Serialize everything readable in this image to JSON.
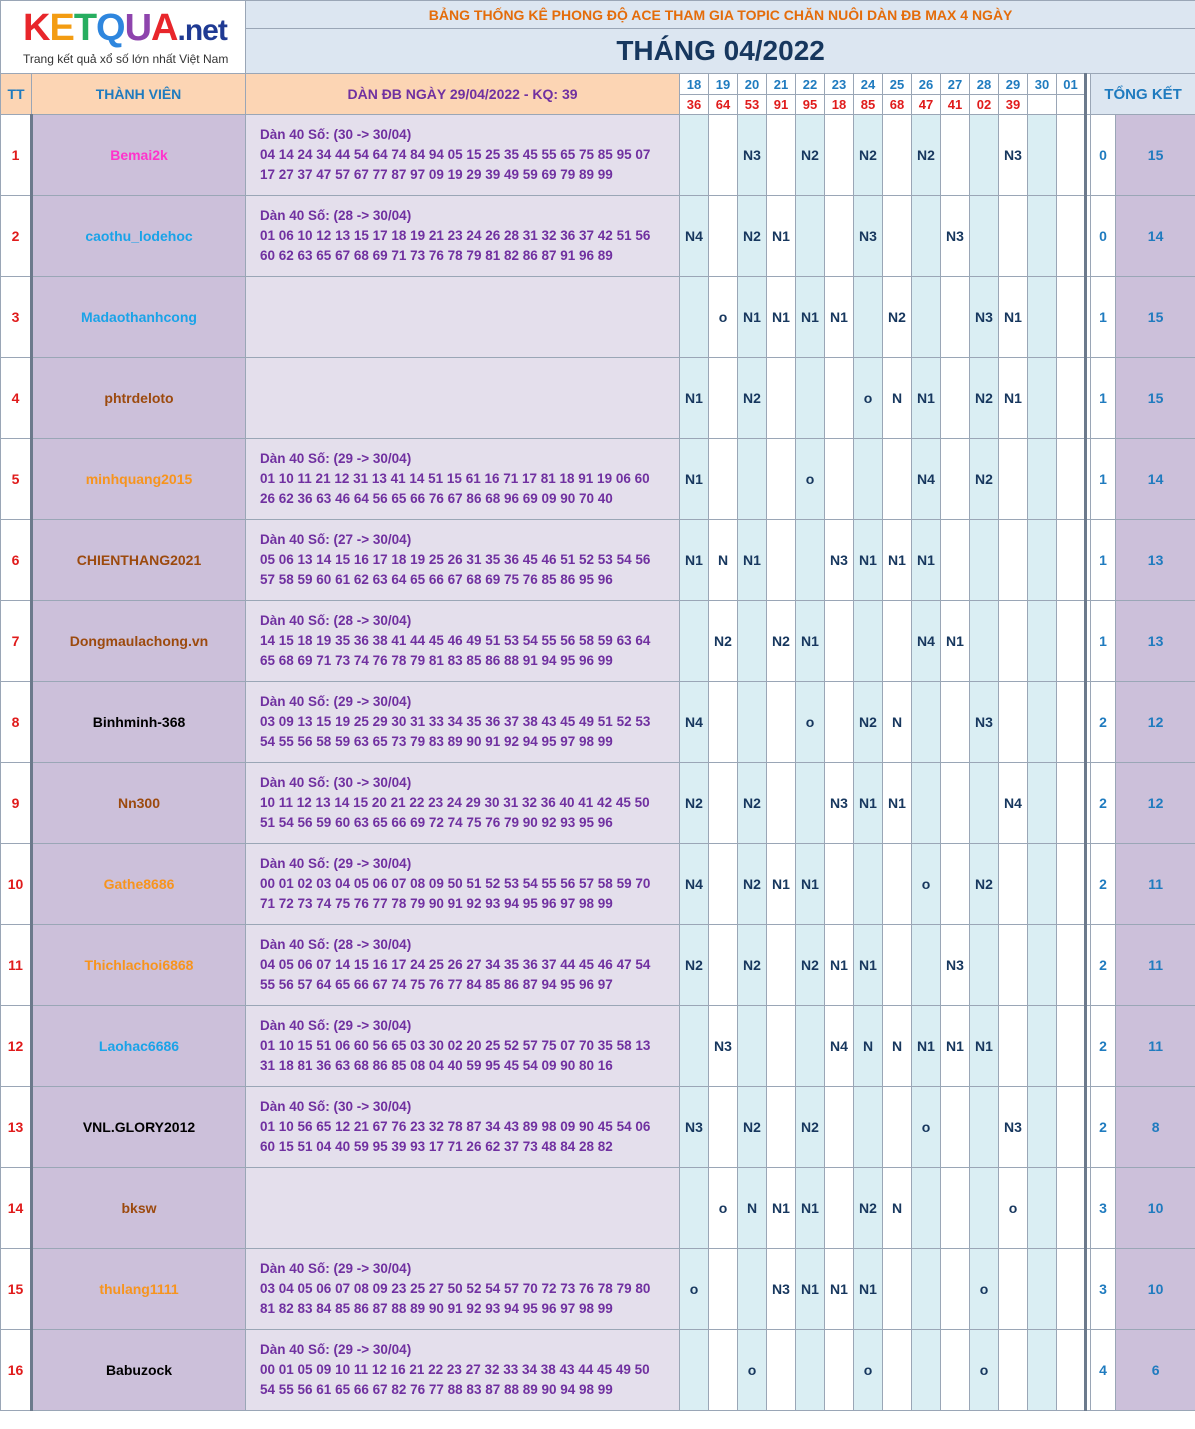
{
  "logo": {
    "letters": [
      "K",
      "E",
      "T",
      "Q",
      "U",
      "A"
    ],
    "letter_colors": [
      "#e8262b",
      "#f39c12",
      "#27ae60",
      "#2e86de",
      "#8e44ad",
      "#e8262b"
    ],
    "suffix": ".net",
    "tagline": "Trang kết quả xổ số lớn nhất Việt Nam"
  },
  "header": {
    "topline": "BẢNG THỐNG KÊ PHONG ĐỘ ACE THAM GIA TOPIC CHĂN NUÔI DÀN ĐB MAX 4 NGÀY",
    "month": "THÁNG 04/2022",
    "col_tt": "TT",
    "col_member": "THÀNH VIÊN",
    "col_dan": "DÀN ĐB NGÀY 29/04/2022 - KQ: 39",
    "col_total": "TỔNG KẾT"
  },
  "days": [
    "18",
    "19",
    "20",
    "21",
    "22",
    "23",
    "24",
    "25",
    "26",
    "27",
    "28",
    "29",
    "30",
    "01"
  ],
  "results": [
    "36",
    "64",
    "53",
    "91",
    "95",
    "18",
    "85",
    "68",
    "47",
    "41",
    "02",
    "39",
    "",
    ""
  ],
  "rows": [
    {
      "tt": "1",
      "name": "Bemai2k",
      "color": "#ff33cc",
      "dan_title": "Dàn 40 Số: (30 -> 30/04)",
      "dan_line1": "04 14 24 34 44 54 64 74 84 94 05 15 25 35 45 55 65 75 85 95 07",
      "dan_line2": "17 27 37 47 57 67 77 87 97 09 19 29 39 49 59 69 79 89 99",
      "marks": [
        "",
        "",
        "N3",
        "",
        "N2",
        "",
        "N2",
        "",
        "N2",
        "",
        "",
        "N3",
        "",
        ""
      ],
      "zero": "0",
      "total": "15"
    },
    {
      "tt": "2",
      "name": "caothu_lodehoc",
      "color": "#1aa3e8",
      "dan_title": "Dàn 40 Số: (28 -> 30/04)",
      "dan_line1": "01 06 10 12 13 15 17 18 19 21 23 24 26 28 31 32 36 37 42 51 56",
      "dan_line2": "60 62 63 65 67 68 69 71 73 76 78 79 81 82 86 87 91 96 89",
      "marks": [
        "N4",
        "",
        "N2",
        "N1",
        "",
        "",
        "N3",
        "",
        "",
        "N3",
        "",
        "",
        "",
        ""
      ],
      "zero": "0",
      "total": "14"
    },
    {
      "tt": "3",
      "name": "Madaothanhcong",
      "color": "#1aa3e8",
      "dan_title": "",
      "dan_line1": "",
      "dan_line2": "",
      "marks": [
        "",
        "o",
        "N1",
        "N1",
        "N1",
        "N1",
        "",
        "N2",
        "",
        "",
        "N3",
        "N1",
        "",
        ""
      ],
      "zero": "1",
      "total": "15"
    },
    {
      "tt": "4",
      "name": "phtrdeloto",
      "color": "#9c4a0e",
      "dan_title": "",
      "dan_line1": "",
      "dan_line2": "",
      "marks": [
        "N1",
        "",
        "N2",
        "",
        "",
        "",
        "o",
        "N",
        "N1",
        "",
        "N2",
        "N1",
        "",
        ""
      ],
      "zero": "1",
      "total": "15"
    },
    {
      "tt": "5",
      "name": "minhquang2015",
      "color": "#f7941d",
      "dan_title": "Dàn 40 Số: (29 -> 30/04)",
      "dan_line1": "01 10 11 21 12 31 13 41 14 51 15 61 16 71 17 81 18 91 19 06 60",
      "dan_line2": "26 62 36 63 46 64 56 65 66 76 67 86 68 96 69 09 90 70 40",
      "marks": [
        "N1",
        "",
        "",
        "",
        "o",
        "",
        "",
        "",
        "N4",
        "",
        "N2",
        "",
        "",
        ""
      ],
      "zero": "1",
      "total": "14"
    },
    {
      "tt": "6",
      "name": "CHIENTHANG2021",
      "color": "#9c4a0e",
      "dan_title": "Dàn 40 Số: (27 -> 30/04)",
      "dan_line1": "05 06 13 14 15 16 17 18 19 25 26 31 35 36 45 46 51 52 53 54 56",
      "dan_line2": "57 58 59 60 61 62 63 64 65 66 67 68 69 75 76 85 86 95 96",
      "marks": [
        "N1",
        "N",
        "N1",
        "",
        "",
        "N3",
        "N1",
        "N1",
        "N1",
        "",
        "",
        "",
        "",
        ""
      ],
      "zero": "1",
      "total": "13"
    },
    {
      "tt": "7",
      "name": "Dongmaulachong.vn",
      "color": "#9c4a0e",
      "dan_title": "Dàn 40 Số: (28 -> 30/04)",
      "dan_line1": "14 15 18 19 35 36 38 41 44 45 46 49 51 53 54 55 56 58 59 63 64",
      "dan_line2": "65 68 69 71 73 74 76 78 79 81 83 85 86 88 91 94 95 96 99",
      "marks": [
        "",
        "N2",
        "",
        "N2",
        "N1",
        "",
        "",
        "",
        "N4",
        "N1",
        "",
        "",
        "",
        ""
      ],
      "zero": "1",
      "total": "13"
    },
    {
      "tt": "8",
      "name": "Binhminh-368",
      "color": "#000000",
      "dan_title": "Dàn 40 Số: (29 -> 30/04)",
      "dan_line1": "03 09 13 15 19 25 29 30 31 33 34 35 36 37 38 43 45 49 51 52 53",
      "dan_line2": "54 55 56 58 59 63 65 73 79 83 89 90 91 92 94 95 97 98 99",
      "marks": [
        "N4",
        "",
        "",
        "",
        "o",
        "",
        "N2",
        "N",
        "",
        "",
        "N3",
        "",
        "",
        ""
      ],
      "zero": "2",
      "total": "12"
    },
    {
      "tt": "9",
      "name": "Nn300",
      "color": "#9c4a0e",
      "dan_title": "Dàn 40 Số: (30 -> 30/04)",
      "dan_line1": "10 11 12 13 14 15 20 21 22 23 24 29 30 31 32 36 40 41 42 45 50",
      "dan_line2": "51 54 56 59 60 63 65 66 69 72 74 75 76 79 90 92 93 95 96",
      "marks": [
        "N2",
        "",
        "N2",
        "",
        "",
        "N3",
        "N1",
        "N1",
        "",
        "",
        "",
        "N4",
        "",
        ""
      ],
      "zero": "2",
      "total": "12"
    },
    {
      "tt": "10",
      "name": "Gathe8686",
      "color": "#f7941d",
      "dan_title": "Dàn 40 Số: (29 -> 30/04)",
      "dan_line1": "00 01 02 03 04 05 06 07 08 09 50 51 52 53 54 55 56 57 58 59 70",
      "dan_line2": "71 72 73 74 75 76 77 78 79 90 91 92 93 94 95 96 97 98 99",
      "marks": [
        "N4",
        "",
        "N2",
        "N1",
        "N1",
        "",
        "",
        "",
        "o",
        "",
        "N2",
        "",
        "",
        ""
      ],
      "zero": "2",
      "total": "11"
    },
    {
      "tt": "11",
      "name": "Thichlachoi6868",
      "color": "#f7941d",
      "dan_title": "Dàn 40 Số: (28 -> 30/04)",
      "dan_line1": "04 05 06 07 14 15 16 17 24 25 26 27 34 35 36 37 44 45 46 47 54",
      "dan_line2": "55 56 57 64 65 66 67 74 75 76 77 84 85 86 87 94 95 96 97",
      "marks": [
        "N2",
        "",
        "N2",
        "",
        "N2",
        "N1",
        "N1",
        "",
        "",
        "N3",
        "",
        "",
        "",
        ""
      ],
      "zero": "2",
      "total": "11"
    },
    {
      "tt": "12",
      "name": "Laohac6686",
      "color": "#1aa3e8",
      "dan_title": "Dàn 40 Số: (29 -> 30/04)",
      "dan_line1": "01 10 15 51 06 60 56 65 03 30 02 20 25 52 57 75 07 70 35 58 13",
      "dan_line2": "31 18 81 36 63 68 86 85 08 04 40 59 95 45 54 09 90 80 16",
      "marks": [
        "",
        "N3",
        "",
        "",
        "",
        "N4",
        "N",
        "N",
        "N1",
        "N1",
        "N1",
        "",
        "",
        ""
      ],
      "zero": "2",
      "total": "11"
    },
    {
      "tt": "13",
      "name": "VNL.GLORY2012",
      "color": "#000000",
      "dan_title": "Dàn 40 Số: (30 -> 30/04)",
      "dan_line1": "01 10 56 65 12 21 67 76 23 32 78 87 34 43 89 98 09 90 45 54 06",
      "dan_line2": "60 15 51 04 40 59 95 39 93 17 71 26 62 37 73 48 84 28 82",
      "marks": [
        "N3",
        "",
        "N2",
        "",
        "N2",
        "",
        "",
        "",
        "o",
        "",
        "",
        "N3",
        "",
        ""
      ],
      "zero": "2",
      "total": "8"
    },
    {
      "tt": "14",
      "name": "bksw",
      "color": "#9c4a0e",
      "dan_title": "",
      "dan_line1": "",
      "dan_line2": "",
      "marks": [
        "",
        "o",
        "N",
        "N1",
        "N1",
        "",
        "N2",
        "N",
        "",
        "",
        "",
        "o",
        "",
        ""
      ],
      "zero": "3",
      "total": "10"
    },
    {
      "tt": "15",
      "name": "thulang1111",
      "color": "#f7941d",
      "dan_title": "Dàn 40 Số: (29 -> 30/04)",
      "dan_line1": "03 04 05 06 07 08 09 23 25 27 50 52 54 57 70 72 73 76 78 79 80",
      "dan_line2": "81 82 83 84 85 86 87 88 89 90 91 92 93 94 95 96 97 98 99",
      "marks": [
        "o",
        "",
        "",
        "N3",
        "N1",
        "N1",
        "N1",
        "",
        "",
        "",
        "o",
        "",
        "",
        ""
      ],
      "zero": "3",
      "total": "10"
    },
    {
      "tt": "16",
      "name": "Babuzock",
      "color": "#000000",
      "dan_title": "Dàn 40 Số: (29 -> 30/04)",
      "dan_line1": "00 01 05 09 10 11 12 16 21 22 23 27 32 33 34 38 43 44 45 49 50",
      "dan_line2": "54 55 56 61 65 66 67 82 76 77 88 83 87 88 89 90 94 98 99",
      "marks": [
        "",
        "",
        "o",
        "",
        "",
        "",
        "o",
        "",
        "",
        "",
        "o",
        "",
        "",
        ""
      ],
      "zero": "4",
      "total": "6"
    }
  ]
}
